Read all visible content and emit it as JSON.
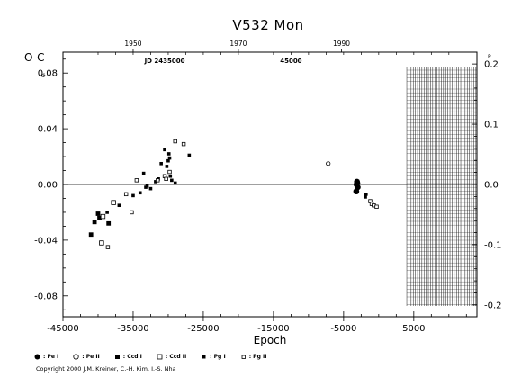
{
  "chart_data": {
    "type": "scatter",
    "title": "V532  Mon",
    "ylabel": "O-C",
    "xlabel": "Epoch",
    "y_unit_mark": "d",
    "xlim": [
      -45000,
      14000
    ],
    "ylim": [
      -0.095,
      0.095
    ],
    "x_ticks": [
      -45000,
      -35000,
      -25000,
      -15000,
      -5000,
      5000
    ],
    "x_tick_labels": [
      "-45000",
      "-35000",
      "-25000",
      "-15000",
      "-5000",
      "5000"
    ],
    "y_ticks": [
      -0.08,
      -0.04,
      0.0,
      0.04,
      0.08
    ],
    "y_tick_labels": [
      "-0.08",
      "-0.04",
      "0.00",
      "0.04",
      "0.08"
    ],
    "top_axis": {
      "tick_labels": [
        "1950",
        "1970",
        "1990"
      ],
      "tick_epochs": [
        -35000,
        -20000,
        -5300
      ],
      "jd_labels": [
        "JD 2435000",
        "45000"
      ],
      "jd_epochs": [
        -30500,
        -12500
      ]
    },
    "right_axis": {
      "tick_values": [
        0.2,
        0.1,
        0.0,
        -0.1,
        -0.2
      ],
      "tick_labels": [
        "0.2",
        "0.1",
        "0.0",
        "-0.1",
        "-0.2"
      ],
      "top_mark": "P",
      "top_mark_value": 0.2,
      "scale": 0.4326
    },
    "hatched_region": [
      4000,
      14000
    ],
    "series": [
      {
        "name": "Pe I",
        "marker": "filled-circle",
        "x": [
          -3200,
          -3150,
          -3100,
          -3050,
          -3000
        ],
        "y": [
          -0.005,
          0.0,
          0.002,
          0.001,
          -0.002
        ]
      },
      {
        "name": "Pe II",
        "marker": "open-circle",
        "x": [
          -7200
        ],
        "y": [
          0.015
        ]
      },
      {
        "name": "Ccd I",
        "marker": "filled-square",
        "x": [
          -41000,
          -40500,
          -40000,
          -39800,
          -38500
        ],
        "y": [
          -0.036,
          -0.027,
          -0.021,
          -0.024,
          -0.028
        ]
      },
      {
        "name": "Ccd II",
        "marker": "open-square",
        "x": [
          -39500,
          -39300,
          -37800
        ],
        "y": [
          -0.042,
          -0.023,
          -0.013
        ]
      },
      {
        "name": "Pg I",
        "marker": "small-filled-square",
        "x": [
          -38700,
          -37000,
          -35000,
          -34000,
          -33500,
          -33200,
          -33000,
          -32500,
          -31800,
          -31400,
          -31000,
          -30500,
          -30200,
          -30000,
          -29900,
          -29800,
          -29700,
          -29500,
          -29000,
          -27000,
          -1900,
          -1800
        ],
        "y": [
          -0.02,
          -0.015,
          -0.008,
          -0.006,
          0.008,
          -0.002,
          -0.001,
          -0.003,
          0.002,
          0.004,
          0.015,
          0.025,
          0.013,
          0.017,
          0.022,
          0.019,
          0.006,
          0.003,
          0.001,
          0.021,
          -0.009,
          -0.007
        ]
      },
      {
        "name": "Pg II",
        "marker": "small-open-square",
        "x": [
          -38600,
          -36000,
          -35200,
          -34500,
          -31500,
          -30500,
          -30300,
          -29800,
          -29000,
          -27800,
          -1200,
          -1000,
          -700,
          -300
        ],
        "y": [
          -0.045,
          -0.007,
          -0.02,
          0.003,
          0.003,
          0.006,
          0.004,
          0.009,
          0.031,
          0.029,
          -0.012,
          -0.014,
          -0.015,
          -0.016
        ]
      }
    ],
    "legend_position": "bottom-left"
  },
  "legend": {
    "items": [
      {
        "label": ": Pe I"
      },
      {
        "label": ": Pe II"
      },
      {
        "label": ": Ccd I"
      },
      {
        "label": ": Ccd II"
      },
      {
        "label": ": Pg I"
      },
      {
        "label": ": Pg II"
      }
    ]
  },
  "footer": {
    "copyright": "Copyright 2000 J.M. Kreiner, C.-H. Kim, I.-S. Nha"
  }
}
